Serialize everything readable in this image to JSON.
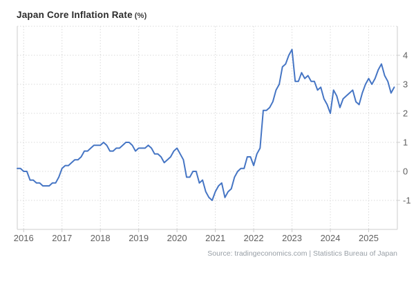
{
  "header": {
    "title": "Japan Core Inflation Rate",
    "unit": "(%)"
  },
  "footer": {
    "source": "Source: tradingeconomics.com | Statistics Bureau of Japan"
  },
  "colors": {
    "line": "#4575c4",
    "grid": "#d9d9d9",
    "axis": "#cccccc",
    "title": "#2b2b2b",
    "tick_label": "#606060",
    "source_text": "#979ea5",
    "background": "#ffffff"
  },
  "chart_data": {
    "type": "line",
    "title": "Japan Core Inflation Rate (%)",
    "series_name": "Core Inflation Rate (% YoY)",
    "frequency": "monthly",
    "x_start": "2015-11",
    "x_end": "2025-09",
    "x_tick_labels": [
      "2016",
      "2017",
      "2018",
      "2019",
      "2020",
      "2021",
      "2022",
      "2023",
      "2024",
      "2025"
    ],
    "y_tick_labels": [
      "4",
      "3",
      "2",
      "1",
      "0",
      "-1"
    ],
    "y_tick_values": [
      4,
      3,
      2,
      1,
      0,
      -1
    ],
    "ylim": [
      -2,
      5
    ],
    "grid": true,
    "legend": false,
    "values": [
      0.1,
      0.1,
      0.0,
      0.0,
      -0.3,
      -0.3,
      -0.4,
      -0.4,
      -0.5,
      -0.5,
      -0.5,
      -0.4,
      -0.4,
      -0.2,
      0.1,
      0.2,
      0.2,
      0.3,
      0.4,
      0.4,
      0.5,
      0.7,
      0.7,
      0.8,
      0.9,
      0.9,
      0.9,
      1.0,
      0.9,
      0.7,
      0.7,
      0.8,
      0.8,
      0.9,
      1.0,
      1.0,
      0.9,
      0.7,
      0.8,
      0.8,
      0.8,
      0.9,
      0.8,
      0.6,
      0.6,
      0.5,
      0.3,
      0.4,
      0.5,
      0.7,
      0.8,
      0.6,
      0.4,
      -0.2,
      -0.2,
      0.0,
      0.0,
      -0.4,
      -0.3,
      -0.7,
      -0.9,
      -1.0,
      -0.7,
      -0.5,
      -0.4,
      -0.9,
      -0.7,
      -0.6,
      -0.2,
      0.0,
      0.1,
      0.1,
      0.5,
      0.5,
      0.2,
      0.6,
      0.8,
      2.1,
      2.1,
      2.2,
      2.4,
      2.8,
      3.0,
      3.6,
      3.7,
      4.0,
      4.2,
      3.1,
      3.1,
      3.4,
      3.2,
      3.3,
      3.1,
      3.1,
      2.8,
      2.9,
      2.5,
      2.3,
      2.0,
      2.8,
      2.6,
      2.2,
      2.5,
      2.6,
      2.7,
      2.8,
      2.4,
      2.3,
      2.7,
      3.0,
      3.2,
      3.0,
      3.2,
      3.5,
      3.7,
      3.3,
      3.1,
      2.7,
      2.9
    ]
  }
}
